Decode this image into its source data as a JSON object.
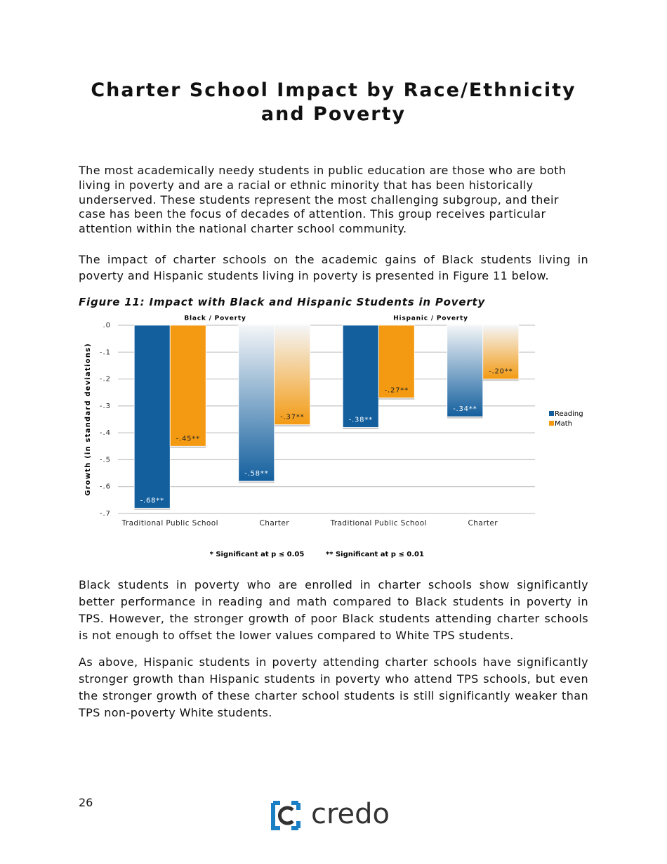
{
  "header": {
    "title": "Charter School Impact by Race/Ethnicity and Poverty"
  },
  "paragraphs": [
    "The most academically needy students in public education are those who are both living in poverty and are a racial or ethnic minority that has been historically underserved.  These students represent the most challenging subgroup, and their case has been the focus of decades of attention.  This group receives particular attention within the national charter school community.",
    "The impact of charter schools on the academic gains of Black students living in poverty and Hispanic students living in poverty is presented in Figure 11 below.",
    "Black students in poverty who are enrolled in charter schools show significantly better performance in reading and math compared to Black students in poverty in TPS. However, the stronger growth of poor Black students attending charter schools is not enough to offset the lower values compared to White TPS students.",
    "As above, Hispanic students in poverty attending charter schools have significantly stronger growth than Hispanic students in poverty who attend TPS schools, but even the stronger growth of these charter school students is still significantly weaker than TPS non-poverty White students."
  ],
  "figure_caption": "Figure 11: Impact with Black and Hispanic Students in Poverty",
  "chart_data": {
    "type": "bar",
    "group_labels": [
      "Black / Poverty",
      "Hispanic / Poverty"
    ],
    "categories": [
      "Traditional Public School",
      "Charter",
      "Traditional Public School",
      "Charter"
    ],
    "y_label": "Growth (in standard deviations)",
    "series": [
      {
        "name": "Reading",
        "color": "#135f9e",
        "values": [
          -0.68,
          -0.58,
          -0.38,
          -0.34
        ],
        "value_labels": [
          "-.68**",
          "-.58**",
          "-.38**",
          "-.34**"
        ]
      },
      {
        "name": "Math",
        "color": "#f39a12",
        "values": [
          -0.45,
          -0.37,
          -0.27,
          -0.2
        ],
        "value_labels": [
          "-.45**",
          "-.37**",
          "-.27**",
          "-.20**"
        ]
      }
    ],
    "ylim": [
      -0.7,
      0
    ],
    "yticks": [
      {
        "value": 0,
        "label": ".0"
      },
      {
        "value": -0.1,
        "label": "-.1"
      },
      {
        "value": -0.2,
        "label": "-.2"
      },
      {
        "value": -0.3,
        "label": "-.3"
      },
      {
        "value": -0.4,
        "label": "-.4"
      },
      {
        "value": -0.5,
        "label": "-.5"
      },
      {
        "value": -0.6,
        "label": "-.6"
      },
      {
        "value": -0.7,
        "label": "-.7"
      }
    ],
    "grid": true,
    "legend": "right",
    "notes": [
      "* Significant at p ≤ 0.05",
      "** Significant at p ≤ 0.01"
    ]
  },
  "footer": {
    "page_number": "26",
    "logo": "credo"
  }
}
